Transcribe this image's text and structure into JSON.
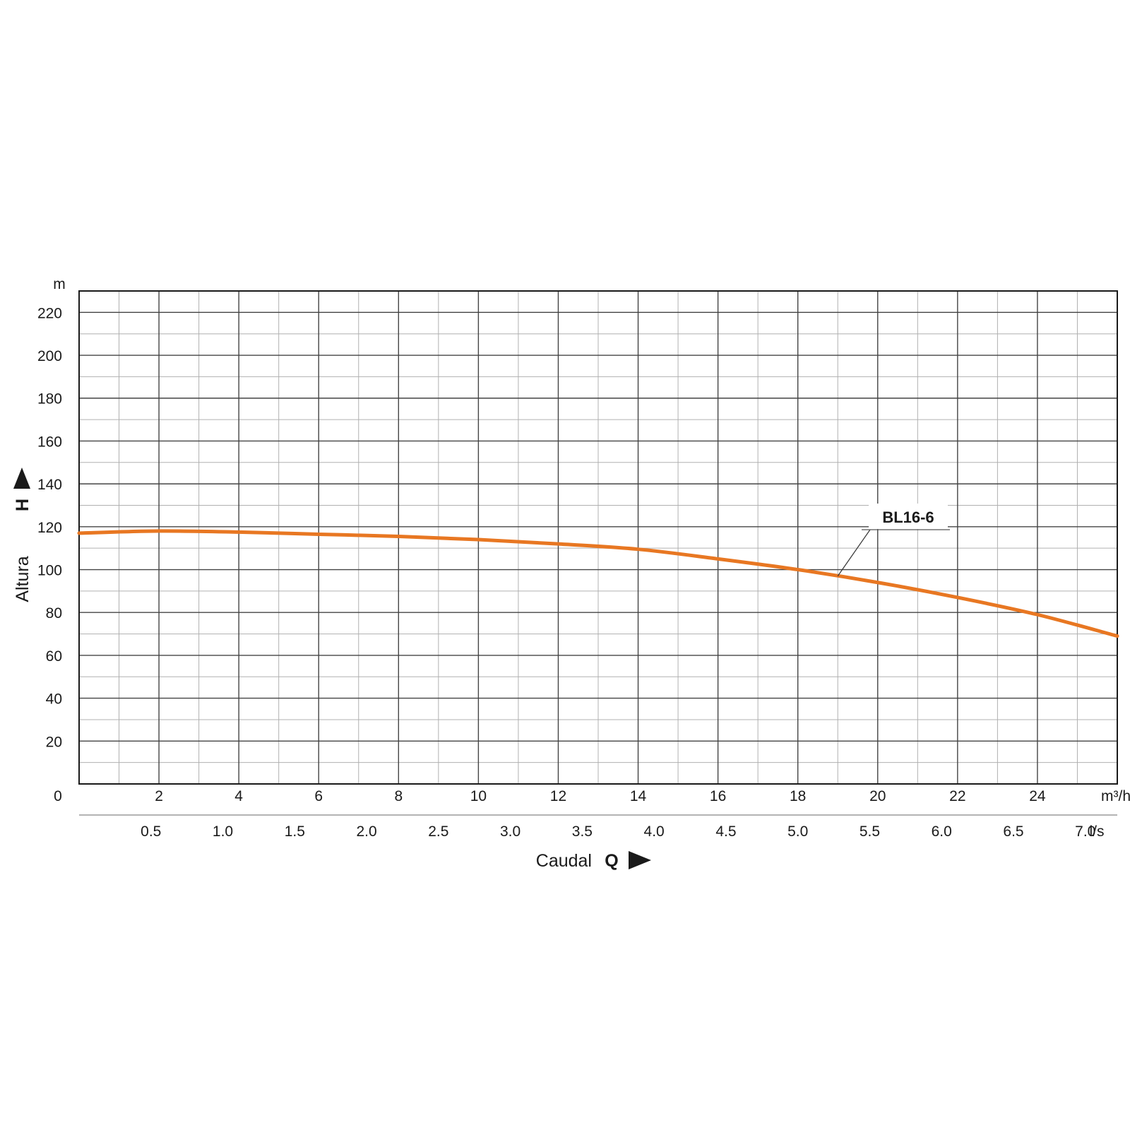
{
  "chart_data": {
    "type": "line",
    "xlabel": "Caudal",
    "x_symbol": "Q",
    "ylabel": "Altura",
    "y_symbol": "H",
    "x_unit": "m³/h",
    "x2_unit": "l/s",
    "y_unit": "m",
    "xlim": [
      0,
      26
    ],
    "ylim": [
      0,
      230
    ],
    "x_ticks": [
      2,
      4,
      6,
      8,
      10,
      12,
      14,
      16,
      18,
      20,
      22,
      24
    ],
    "x_zero_label": "0",
    "y_ticks": [
      20,
      40,
      60,
      80,
      100,
      120,
      140,
      160,
      180,
      200,
      220
    ],
    "x2_ticks": [
      0.5,
      1.0,
      1.5,
      2.0,
      2.5,
      3.0,
      3.5,
      4.0,
      4.5,
      5.0,
      5.5,
      6.0,
      6.5,
      7.0
    ],
    "grid": true,
    "series": [
      {
        "name": "BL16-6",
        "color": "#e87722",
        "x": [
          0,
          2,
          4,
          6,
          8,
          10,
          12,
          14,
          16,
          18,
          20,
          22,
          24,
          26
        ],
        "y": [
          117,
          118,
          117.5,
          116.5,
          115.5,
          114,
          112,
          109.5,
          105,
          100,
          94,
          87,
          79,
          69
        ]
      }
    ],
    "annotation": {
      "text": "BL16-6",
      "points_to_x": 19
    }
  }
}
